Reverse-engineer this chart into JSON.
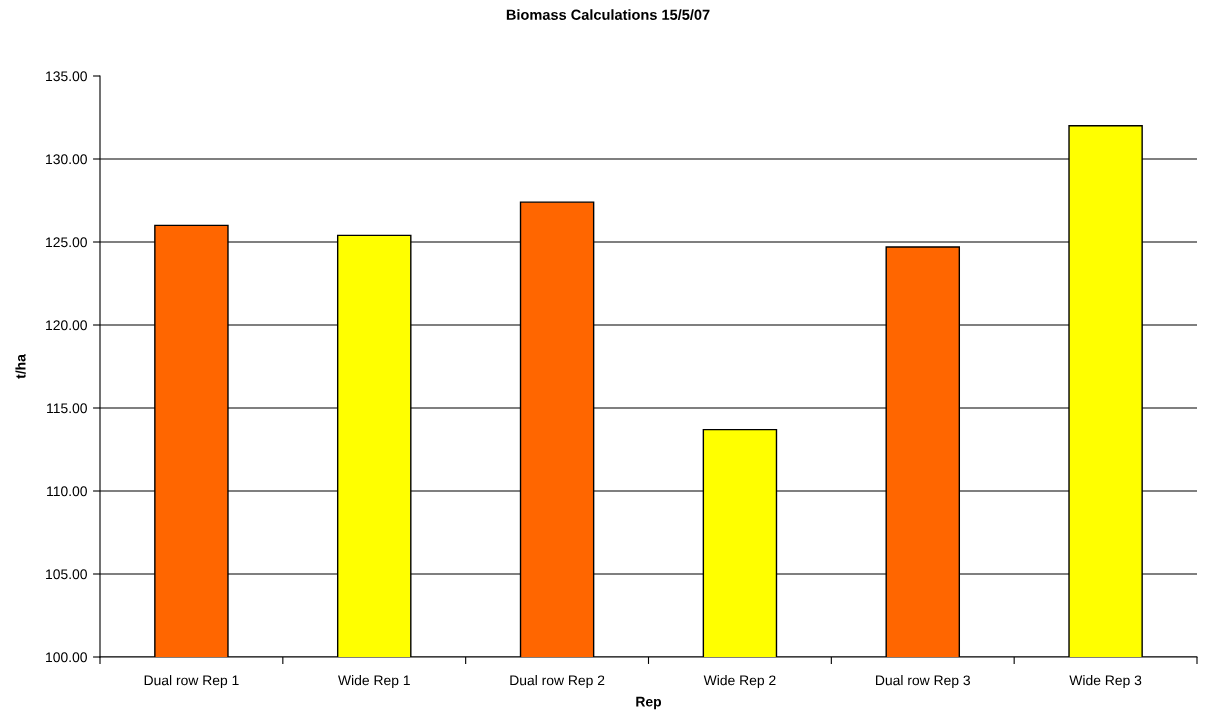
{
  "chart_data": {
    "type": "bar",
    "title": "Biomass Calculations 15/5/07",
    "xlabel": "Rep",
    "ylabel": "t/ha",
    "categories": [
      "Dual row Rep 1",
      "Wide Rep 1",
      "Dual row Rep 2",
      "Wide Rep 2",
      "Dual row Rep 3",
      "Wide Rep 3"
    ],
    "values": [
      126.0,
      125.4,
      127.4,
      113.7,
      124.7,
      132.0
    ],
    "colors": [
      "#ff6600",
      "#ffff00",
      "#ff6600",
      "#ffff00",
      "#ff6600",
      "#ffff00"
    ],
    "ylim": [
      100,
      135
    ],
    "yticks": [
      {
        "value": 100,
        "label": "100.00"
      },
      {
        "value": 105,
        "label": "105.00"
      },
      {
        "value": 110,
        "label": "110.00"
      },
      {
        "value": 115,
        "label": "115.00"
      },
      {
        "value": 120,
        "label": "120.00"
      },
      {
        "value": 125,
        "label": "125.00"
      },
      {
        "value": 130,
        "label": "130.00"
      },
      {
        "value": 135,
        "label": "135.00"
      }
    ],
    "grid": "y",
    "legend": false
  }
}
